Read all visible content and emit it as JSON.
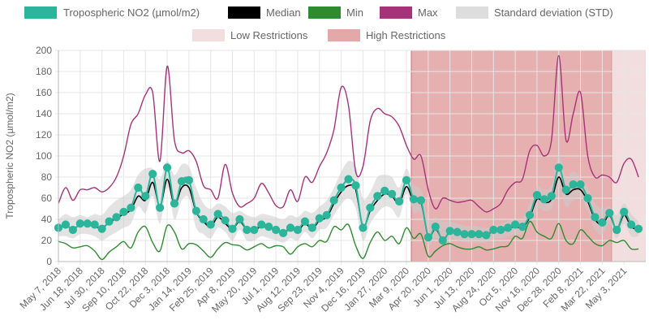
{
  "chart_data": {
    "type": "line",
    "ylabel": "Tropospheric NO2 (µmol/m2)",
    "ylim": [
      0,
      200
    ],
    "yticks": [
      0,
      20,
      40,
      60,
      80,
      100,
      120,
      140,
      160,
      180,
      200
    ],
    "x_tick_labels": [
      "May 7, 2018",
      "Jun 18, 2018",
      "Jul 30, 2018",
      "Sep 10, 2018",
      "Oct 22, 2018",
      "Dec 3, 2018",
      "Jan 14, 2019",
      "Feb 25, 2019",
      "Apr 8, 2019",
      "May 20, 2019",
      "Jul 1, 2019",
      "Aug 12, 2019",
      "Sep 23, 2019",
      "Nov 4, 2019",
      "Dec 16, 2019",
      "Jan 27, 2020",
      "Mar 9, 2020",
      "Apr 20, 2020",
      "Jun 1, 2020",
      "Jul 13, 2020",
      "Aug 24, 2020",
      "Oct 5, 2020",
      "Nov 16, 2020",
      "Dec 28, 2020",
      "Feb 8, 2021",
      "Mar 22, 2021",
      "May 3, 2021"
    ],
    "grid": true,
    "legend_position": "top",
    "legend": [
      {
        "label": "Tropospheric NO2 (µmol/m2)",
        "color": "#2bb59a"
      },
      {
        "label": "Median",
        "color": "#000000"
      },
      {
        "label": "Min",
        "color": "#2e8b30"
      },
      {
        "label": "Max",
        "color": "#a6327a"
      },
      {
        "label": "Standard deviation (STD)",
        "color": "#dddddd"
      }
    ],
    "legend_row2": [
      {
        "label": "Low Restrictions",
        "color": "#f2dede"
      },
      {
        "label": "High Restrictions",
        "color": "#e5a8a8"
      }
    ],
    "regions": [
      {
        "label": "High Restrictions",
        "from": "Mar 23, 2020",
        "to": "Apr 12, 2021"
      },
      {
        "label": "Low Restrictions",
        "from": "Apr 12, 2021",
        "to": "May 24, 2021"
      }
    ],
    "series": [
      {
        "name": "Tropospheric NO2 (µmol/m2)",
        "color": "#2bb59a",
        "values": [
          32,
          35,
          30,
          36,
          36,
          35,
          31,
          38,
          42,
          47,
          51,
          70,
          62,
          83,
          51,
          89,
          55,
          76,
          77,
          48,
          40,
          35,
          45,
          39,
          31,
          40,
          30,
          30,
          35,
          33,
          30,
          27,
          32,
          30,
          38,
          32,
          41,
          44,
          58,
          70,
          78,
          72,
          32,
          51,
          62,
          67,
          64,
          57,
          77,
          59,
          58,
          23,
          33,
          20,
          29,
          28,
          26,
          26,
          26,
          25,
          30,
          30,
          32,
          35,
          33,
          44,
          63,
          59,
          62,
          89,
          68,
          73,
          73,
          60,
          42,
          37,
          46,
          30,
          47,
          35,
          31
        ]
      },
      {
        "name": "Median",
        "color": "#000000",
        "values": [
          31,
          34,
          31,
          35,
          35,
          33,
          32,
          37,
          41,
          45,
          49,
          62,
          58,
          75,
          52,
          78,
          54,
          70,
          70,
          47,
          38,
          33,
          42,
          36,
          31,
          38,
          30,
          30,
          33,
          32,
          30,
          27,
          31,
          29,
          36,
          31,
          39,
          42,
          55,
          66,
          72,
          68,
          33,
          48,
          58,
          64,
          62,
          55,
          71,
          57,
          56,
          24,
          31,
          21,
          28,
          27,
          25,
          25,
          25,
          25,
          29,
          29,
          31,
          33,
          32,
          42,
          59,
          56,
          59,
          80,
          64,
          68,
          68,
          57,
          40,
          35,
          44,
          30,
          44,
          33,
          30
        ]
      },
      {
        "name": "Min",
        "color": "#2e8b30",
        "values": [
          19,
          17,
          13,
          14,
          15,
          10,
          2,
          9,
          14,
          19,
          13,
          28,
          33,
          18,
          10,
          34,
          28,
          12,
          17,
          16,
          10,
          4,
          12,
          18,
          16,
          15,
          11,
          14,
          17,
          13,
          15,
          14,
          7,
          14,
          17,
          14,
          20,
          19,
          33,
          30,
          35,
          15,
          3,
          18,
          28,
          20,
          24,
          17,
          32,
          22,
          26,
          5,
          10,
          15,
          17,
          14,
          12,
          12,
          14,
          11,
          12,
          14,
          15,
          24,
          22,
          38,
          28,
          24,
          22,
          36,
          20,
          17,
          30,
          24,
          17,
          15,
          20,
          18,
          20,
          12,
          12
        ]
      },
      {
        "name": "Max",
        "color": "#a6327a",
        "values": [
          55,
          70,
          58,
          68,
          68,
          70,
          66,
          70,
          80,
          100,
          130,
          140,
          158,
          160,
          95,
          185,
          115,
          103,
          105,
          95,
          72,
          68,
          60,
          92,
          65,
          52,
          55,
          60,
          74,
          65,
          53,
          52,
          68,
          57,
          80,
          75,
          90,
          103,
          125,
          165,
          148,
          85,
          90,
          133,
          145,
          140,
          137,
          128,
          110,
          97,
          100,
          68,
          50,
          60,
          58,
          56,
          57,
          58,
          52,
          47,
          50,
          55,
          68,
          75,
          78,
          105,
          110,
          100,
          115,
          195,
          115,
          140,
          160,
          100,
          80,
          82,
          80,
          75,
          93,
          97,
          80
        ]
      },
      {
        "name": "Standard deviation (STD)",
        "color": "#dddddd",
        "upper": [
          40,
          45,
          42,
          44,
          42,
          45,
          44,
          52,
          58,
          62,
          68,
          82,
          88,
          88,
          78,
          95,
          82,
          92,
          90,
          70,
          55,
          50,
          55,
          52,
          46,
          48,
          44,
          42,
          45,
          44,
          42,
          40,
          44,
          42,
          48,
          46,
          52,
          58,
          70,
          85,
          95,
          90,
          60,
          66,
          80,
          82,
          80,
          70,
          88,
          72,
          68,
          40,
          42,
          38,
          38,
          36,
          34,
          34,
          33,
          32,
          34,
          36,
          38,
          40,
          40,
          55,
          70,
          68,
          72,
          100,
          80,
          85,
          80,
          70,
          55,
          50,
          52,
          44,
          55,
          45,
          38
        ],
        "lower": [
          24,
          24,
          22,
          26,
          26,
          24,
          20,
          24,
          28,
          32,
          36,
          52,
          46,
          62,
          36,
          70,
          40,
          58,
          60,
          32,
          26,
          22,
          32,
          28,
          20,
          30,
          20,
          20,
          24,
          22,
          20,
          18,
          22,
          20,
          28,
          22,
          30,
          32,
          44,
          54,
          60,
          50,
          20,
          36,
          46,
          52,
          50,
          42,
          64,
          46,
          46,
          16,
          22,
          14,
          22,
          20,
          18,
          18,
          18,
          18,
          22,
          22,
          24,
          26,
          26,
          34,
          50,
          48,
          50,
          70,
          52,
          58,
          60,
          48,
          30,
          26,
          36,
          22,
          36,
          24,
          24
        ]
      }
    ]
  }
}
